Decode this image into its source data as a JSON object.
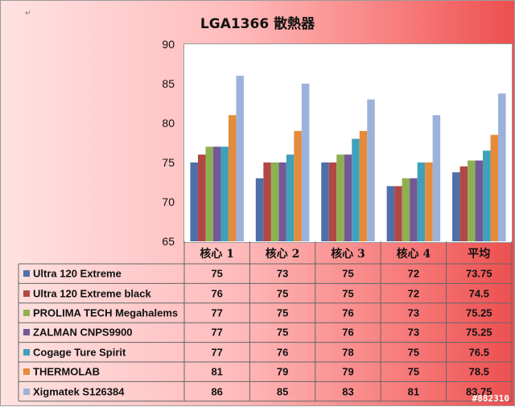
{
  "chart_data": {
    "type": "bar",
    "title": "LGA1366 散熱器",
    "categories": [
      "核心 1",
      "核心 2",
      "核心 3",
      "核心 4",
      "平均"
    ],
    "ylim": [
      65,
      90
    ],
    "yticks": [
      65,
      70,
      75,
      80,
      85,
      90
    ],
    "grid": false,
    "legend": "data table below plot",
    "series": [
      {
        "name": "Ultra 120 Extreme",
        "color": "#4f6fa8",
        "values": [
          75,
          73,
          75,
          72,
          73.75
        ],
        "labels": [
          "75",
          "73",
          "75",
          "72",
          "73.75"
        ]
      },
      {
        "name": "Ultra 120 Extreme black",
        "color": "#b14846",
        "values": [
          76,
          75,
          75,
          72,
          74.5
        ],
        "labels": [
          "76",
          "75",
          "75",
          "72",
          "74.5"
        ]
      },
      {
        "name": "PROLIMA TECH Megahalems",
        "color": "#8fb052",
        "values": [
          77,
          75,
          76,
          73,
          75.25
        ],
        "labels": [
          "77",
          "75",
          "76",
          "73",
          "75.25"
        ]
      },
      {
        "name": "ZALMAN CNPS9900",
        "color": "#735997",
        "values": [
          77,
          75,
          76,
          73,
          75.25
        ],
        "labels": [
          "77",
          "75",
          "76",
          "73",
          "75.25"
        ]
      },
      {
        "name": "Cogage Ture Spirit",
        "color": "#3ea1b9",
        "values": [
          77,
          76,
          78,
          75,
          76.5
        ],
        "labels": [
          "77",
          "76",
          "78",
          "75",
          "76.5"
        ]
      },
      {
        "name": "THERMOLAB",
        "color": "#e68b3a",
        "values": [
          81,
          79,
          79,
          75,
          78.5
        ],
        "labels": [
          "81",
          "79",
          "79",
          "75",
          "78.5"
        ]
      },
      {
        "name": "Xigmatek S126384",
        "color": "#9db2da",
        "values": [
          86,
          85,
          83,
          81,
          83.75
        ],
        "labels": [
          "86",
          "85",
          "83",
          "81",
          "83.75"
        ]
      }
    ]
  },
  "watermark": "#882310",
  "corner_mark": "↵"
}
